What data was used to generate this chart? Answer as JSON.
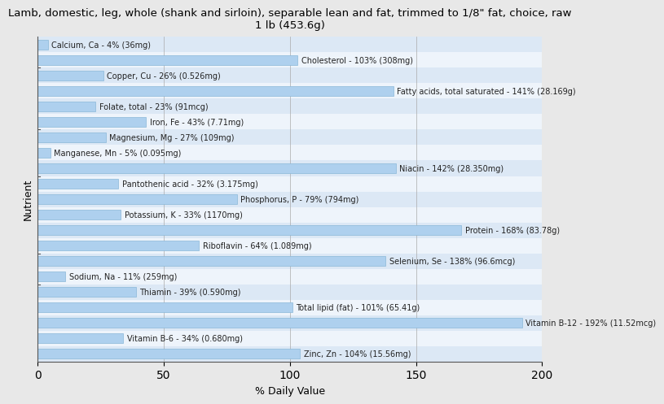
{
  "title": "Lamb, domestic, leg, whole (shank and sirloin), separable lean and fat, trimmed to 1/8\" fat, choice, raw\n1 lb (453.6g)",
  "xlabel": "% Daily Value",
  "ylabel": "Nutrient",
  "xlim": [
    0,
    200
  ],
  "xticks": [
    0,
    50,
    100,
    150,
    200
  ],
  "bar_color": "#aed0ee",
  "bar_edge_color": "#8ab8d8",
  "background_color": "#e8e8e8",
  "band_colors": [
    "#dce8f5",
    "#eef4fb"
  ],
  "nutrients": [
    "Calcium, Ca - 4% (36mg)",
    "Cholesterol - 103% (308mg)",
    "Copper, Cu - 26% (0.526mg)",
    "Fatty acids, total saturated - 141% (28.169g)",
    "Folate, total - 23% (91mcg)",
    "Iron, Fe - 43% (7.71mg)",
    "Magnesium, Mg - 27% (109mg)",
    "Manganese, Mn - 5% (0.095mg)",
    "Niacin - 142% (28.350mg)",
    "Pantothenic acid - 32% (3.175mg)",
    "Phosphorus, P - 79% (794mg)",
    "Potassium, K - 33% (1170mg)",
    "Protein - 168% (83.78g)",
    "Riboflavin - 64% (1.089mg)",
    "Selenium, Se - 138% (96.6mcg)",
    "Sodium, Na - 11% (259mg)",
    "Thiamin - 39% (0.590mg)",
    "Total lipid (fat) - 101% (65.41g)",
    "Vitamin B-12 - 192% (11.52mcg)",
    "Vitamin B-6 - 34% (0.680mg)",
    "Zinc, Zn - 104% (15.56mg)"
  ],
  "values": [
    4,
    103,
    26,
    141,
    23,
    43,
    27,
    5,
    142,
    32,
    79,
    33,
    168,
    64,
    138,
    11,
    39,
    101,
    192,
    34,
    104
  ],
  "title_fontsize": 9.5,
  "label_fontsize": 7,
  "axis_fontsize": 9
}
